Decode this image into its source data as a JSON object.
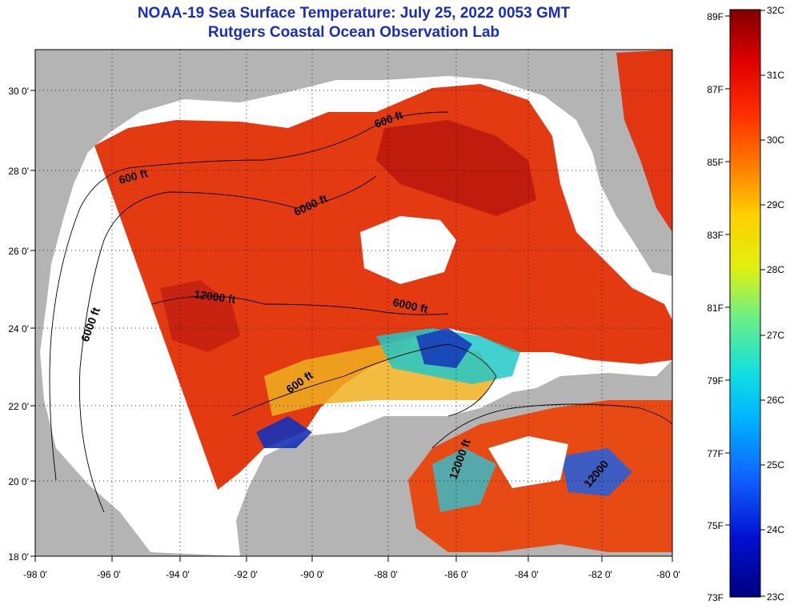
{
  "title": "NOAA-19 Sea Surface Temperature:  July 25, 2022 0053 GMT",
  "subtitle": "Rutgers Coastal Ocean Observation Lab",
  "axes": {
    "lat_labels": [
      "30 0'",
      "28 0'",
      "26 0'",
      "24 0'",
      "22 0'",
      "20 0'",
      "18 0'"
    ],
    "lon_labels": [
      "-98 0'",
      "-96 0'",
      "-94 0'",
      "-92 0'",
      "-90 0'",
      "-88 0'",
      "-86 0'",
      "-84 0'",
      "-82 0'",
      "-80 0'"
    ]
  },
  "contour_labels": [
    "600 ft",
    "6000 ft",
    "600 ft",
    "12000 ft",
    "6000 ft",
    "6000 ft",
    "600 ft",
    "12000 ft",
    "12000"
  ],
  "colorbar": {
    "fahrenheit": [
      "89F",
      "87F",
      "85F",
      "83F",
      "81F",
      "79F",
      "77F",
      "75F",
      "73F"
    ],
    "celsius": [
      "32C",
      "31C",
      "30C",
      "29C",
      "28C",
      "27C",
      "26C",
      "25C",
      "24C",
      "23C"
    ]
  },
  "colors": {
    "title": "#1a2fb8",
    "land": "#b4b4b4",
    "no_data": "#ffffff"
  }
}
